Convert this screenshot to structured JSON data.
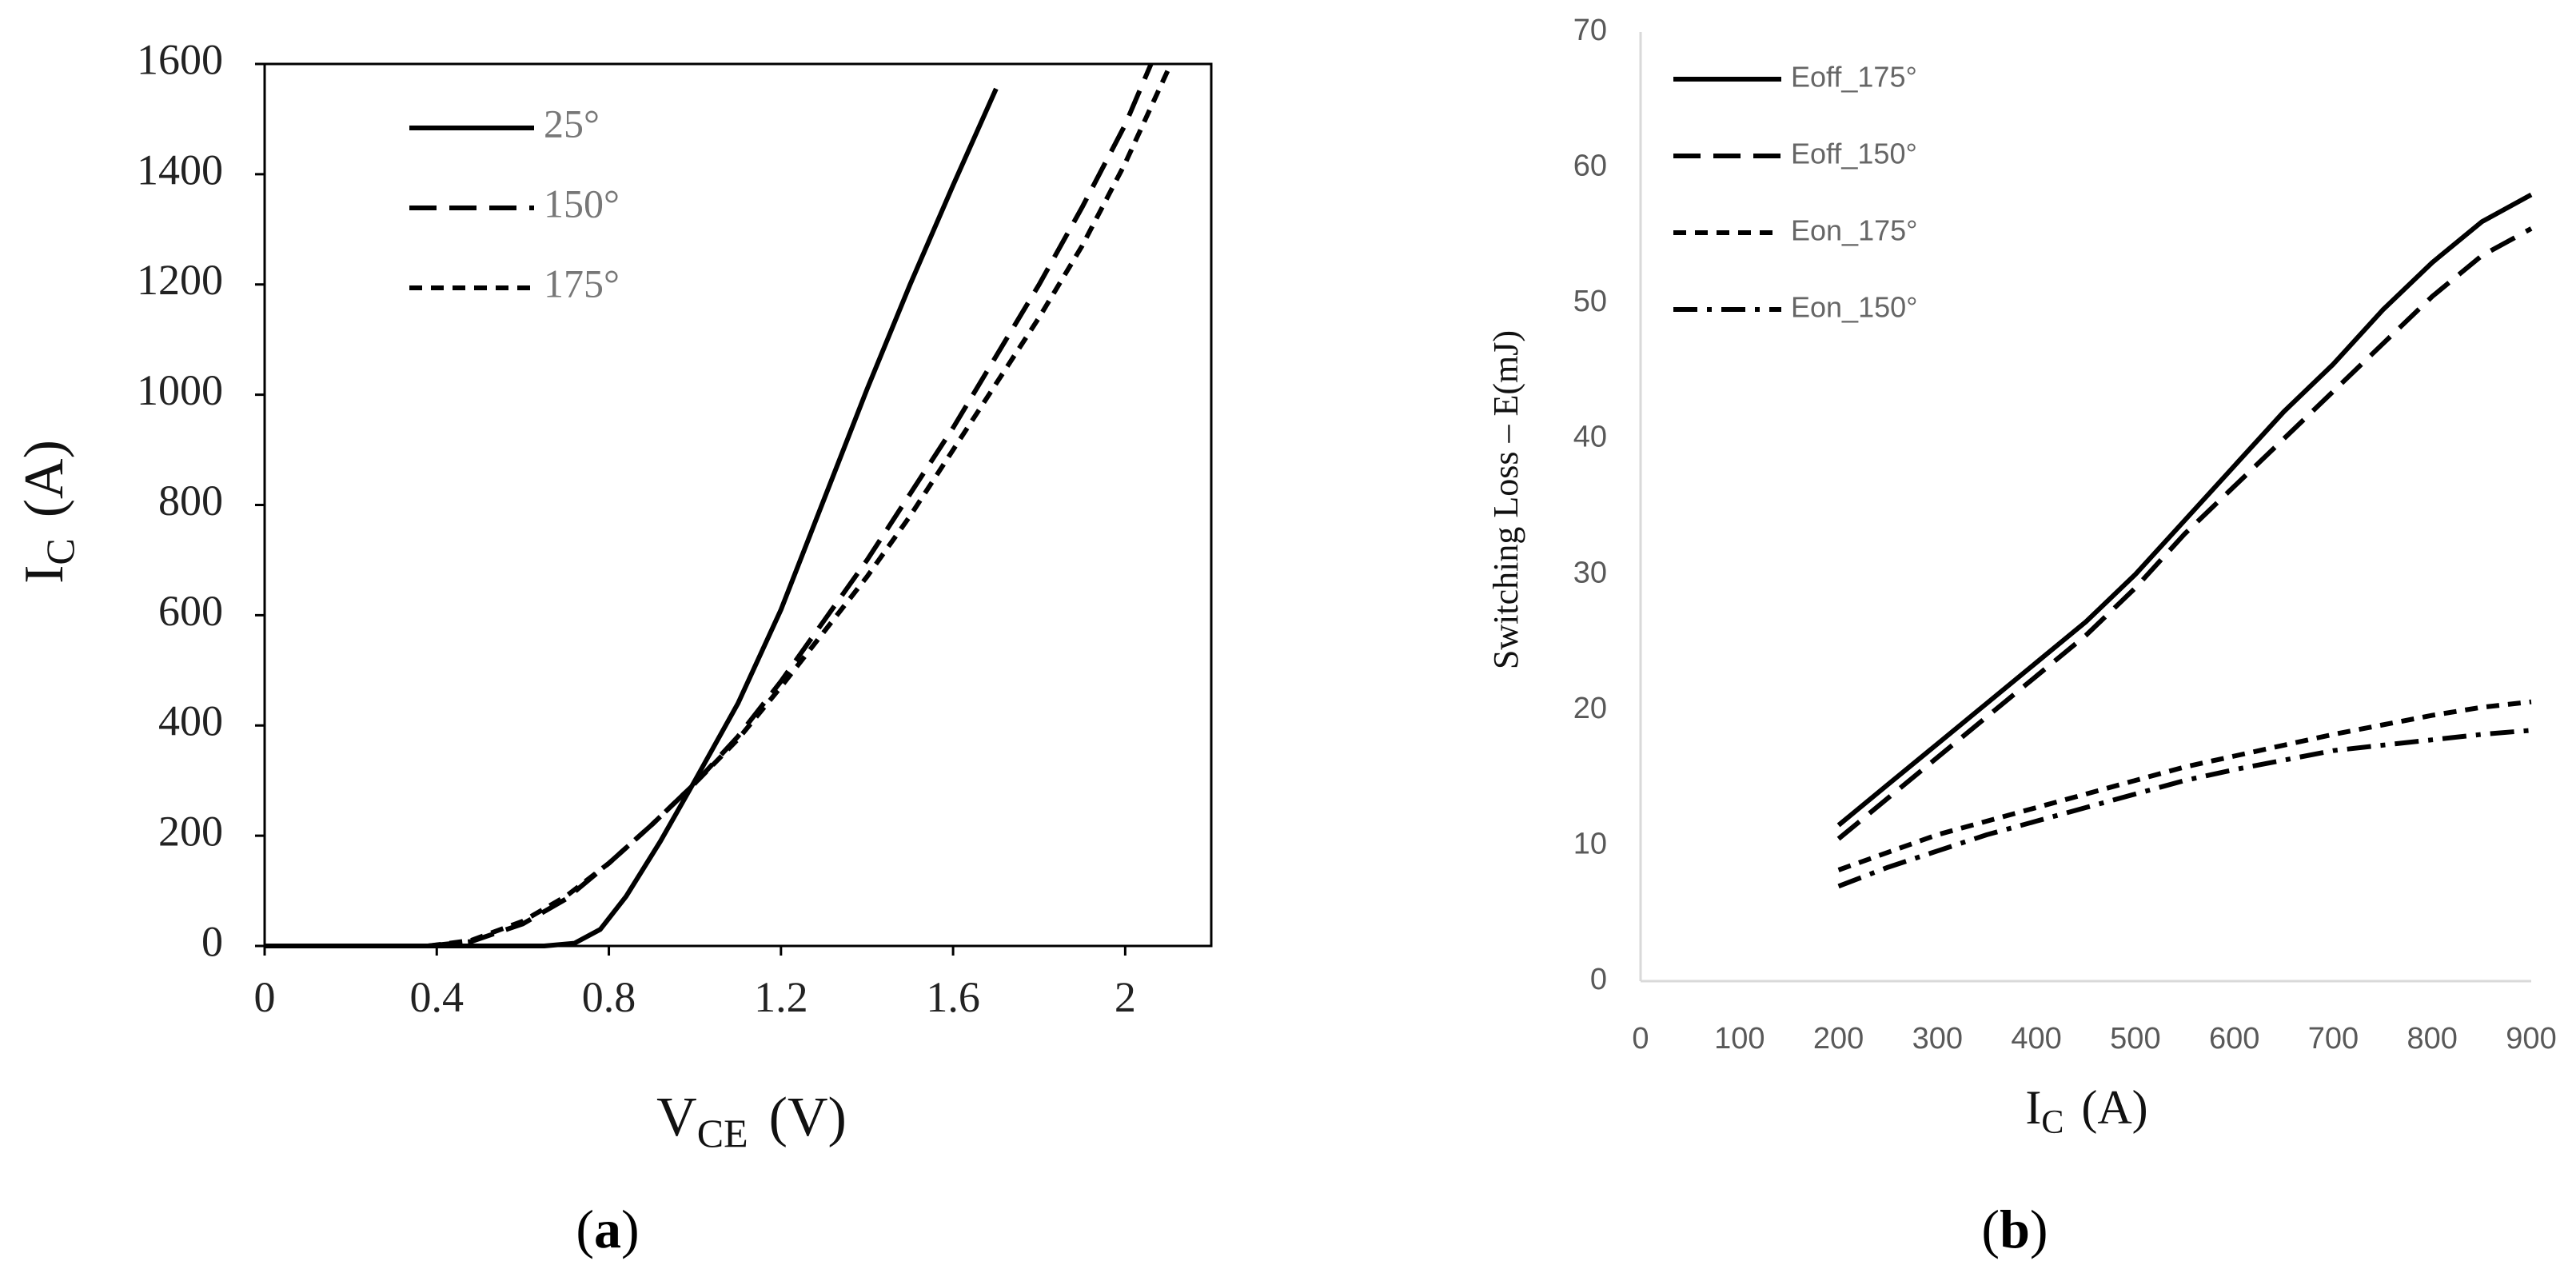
{
  "chart_data": [
    {
      "type": "line",
      "panel_label": {
        "open": "(",
        "letter": "a",
        "close": ")"
      },
      "xlabel": {
        "main": "V",
        "sub": "CE",
        "unit": "(V)"
      },
      "ylabel": {
        "main": "I",
        "sub": "C",
        "unit": "(A)"
      },
      "xlim": [
        0,
        2.2
      ],
      "ylim": [
        0,
        1600
      ],
      "xticks": [
        {
          "v": 0,
          "label": "0"
        },
        {
          "v": 0.4,
          "label": "0.4"
        },
        {
          "v": 0.8,
          "label": "0.8"
        },
        {
          "v": 1.2,
          "label": "1.2"
        },
        {
          "v": 1.6,
          "label": "1.6"
        },
        {
          "v": 2.0,
          "label": "2"
        }
      ],
      "yticks": [
        {
          "v": 0,
          "label": "0"
        },
        {
          "v": 200,
          "label": "200"
        },
        {
          "v": 400,
          "label": "400"
        },
        {
          "v": 600,
          "label": "600"
        },
        {
          "v": 800,
          "label": "800"
        },
        {
          "v": 1000,
          "label": "1000"
        },
        {
          "v": 1200,
          "label": "1200"
        },
        {
          "v": 1400,
          "label": "1400"
        },
        {
          "v": 1600,
          "label": "1600"
        }
      ],
      "legend_position": "top-left",
      "series": [
        {
          "name": "25°",
          "style": "solid",
          "x": [
            0.0,
            0.65,
            0.72,
            0.78,
            0.84,
            0.92,
            1.0,
            1.1,
            1.2,
            1.3,
            1.4,
            1.5,
            1.6,
            1.7
          ],
          "y": [
            0,
            0,
            5,
            30,
            90,
            190,
            300,
            440,
            610,
            810,
            1010,
            1200,
            1380,
            1555
          ]
        },
        {
          "name": "150°",
          "style": "long-dash",
          "x": [
            0.38,
            0.48,
            0.6,
            0.7,
            0.8,
            0.9,
            1.0,
            1.1,
            1.2,
            1.3,
            1.4,
            1.5,
            1.6,
            1.7,
            1.8,
            1.9,
            2.0,
            2.06
          ],
          "y": [
            0,
            8,
            40,
            85,
            150,
            220,
            295,
            380,
            480,
            590,
            700,
            820,
            940,
            1070,
            1200,
            1340,
            1490,
            1600
          ]
        },
        {
          "name": "175°",
          "style": "short-dash",
          "x": [
            0.38,
            0.48,
            0.6,
            0.7,
            0.8,
            0.9,
            1.0,
            1.1,
            1.2,
            1.3,
            1.4,
            1.5,
            1.6,
            1.7,
            1.8,
            1.9,
            2.0,
            2.1
          ],
          "y": [
            0,
            10,
            45,
            90,
            150,
            220,
            295,
            375,
            470,
            570,
            670,
            780,
            900,
            1020,
            1140,
            1270,
            1420,
            1590
          ]
        }
      ]
    },
    {
      "type": "line",
      "panel_label": {
        "open": "(",
        "letter": "b",
        "close": ")"
      },
      "xlabel": {
        "main": "I",
        "sub": "C",
        "unit": "(A)"
      },
      "ylabel": {
        "text": "Switching Loss – E(mJ)"
      },
      "xlim": [
        0,
        900
      ],
      "ylim": [
        0,
        70
      ],
      "xticks": [
        {
          "v": 0,
          "label": "0"
        },
        {
          "v": 100,
          "label": "100"
        },
        {
          "v": 200,
          "label": "200"
        },
        {
          "v": 300,
          "label": "300"
        },
        {
          "v": 400,
          "label": "400"
        },
        {
          "v": 500,
          "label": "500"
        },
        {
          "v": 600,
          "label": "600"
        },
        {
          "v": 700,
          "label": "700"
        },
        {
          "v": 800,
          "label": "800"
        },
        {
          "v": 900,
          "label": "900"
        }
      ],
      "yticks": [
        {
          "v": 0,
          "label": "0"
        },
        {
          "v": 10,
          "label": "10"
        },
        {
          "v": 20,
          "label": "20"
        },
        {
          "v": 30,
          "label": "30"
        },
        {
          "v": 40,
          "label": "40"
        },
        {
          "v": 50,
          "label": "50"
        },
        {
          "v": 60,
          "label": "60"
        },
        {
          "v": 70,
          "label": "70"
        }
      ],
      "legend_position": "top-left",
      "series": [
        {
          "name": "Eoff_175°",
          "style": "solid",
          "x": [
            200,
            250,
            300,
            350,
            400,
            450,
            500,
            550,
            600,
            650,
            700,
            750,
            800,
            850,
            900
          ],
          "y": [
            11.5,
            14.5,
            17.5,
            20.5,
            23.5,
            26.5,
            30,
            34,
            38,
            42,
            45.5,
            49.5,
            53,
            56,
            58
          ]
        },
        {
          "name": "Eoff_150°",
          "style": "long-dash",
          "x": [
            200,
            250,
            300,
            350,
            400,
            450,
            500,
            550,
            600,
            650,
            700,
            750,
            800,
            850,
            900
          ],
          "y": [
            10.5,
            13.5,
            16.5,
            19.5,
            22.5,
            25.5,
            29,
            33,
            36.5,
            40,
            43.5,
            47,
            50.5,
            53.5,
            55.5
          ]
        },
        {
          "name": "Eon_175°",
          "style": "short-dash",
          "x": [
            200,
            250,
            300,
            350,
            400,
            450,
            500,
            550,
            600,
            650,
            700,
            750,
            800,
            850,
            900
          ],
          "y": [
            8.2,
            9.5,
            10.8,
            11.8,
            12.8,
            13.8,
            14.8,
            15.8,
            16.6,
            17.4,
            18.2,
            18.9,
            19.6,
            20.2,
            20.6
          ]
        },
        {
          "name": "Eon_150°",
          "style": "dash-dot",
          "x": [
            200,
            250,
            300,
            350,
            400,
            450,
            500,
            550,
            600,
            650,
            700,
            750,
            800,
            850,
            900
          ],
          "y": [
            7.0,
            8.4,
            9.6,
            10.8,
            11.8,
            12.8,
            13.8,
            14.8,
            15.6,
            16.3,
            17.0,
            17.4,
            17.8,
            18.2,
            18.5
          ]
        }
      ]
    }
  ]
}
